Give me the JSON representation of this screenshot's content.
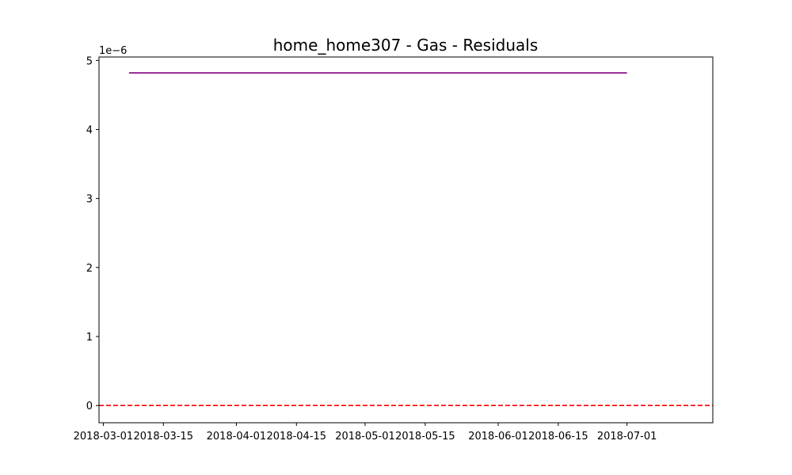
{
  "chart_data": {
    "type": "line",
    "title": "home_home307 - Gas - Residuals",
    "xlabel": "",
    "ylabel": "",
    "y_offset_label": "1e−6",
    "x_ticks": [
      {
        "date": "2018-03-01",
        "label": "2018-03-01"
      },
      {
        "date": "2018-03-15",
        "label": "2018-03-15"
      },
      {
        "date": "2018-04-01",
        "label": "2018-04-01"
      },
      {
        "date": "2018-04-15",
        "label": "2018-04-15"
      },
      {
        "date": "2018-05-01",
        "label": "2018-05-01"
      },
      {
        "date": "2018-05-15",
        "label": "2018-05-15"
      },
      {
        "date": "2018-06-01",
        "label": "2018-06-01"
      },
      {
        "date": "2018-06-15",
        "label": "2018-06-15"
      },
      {
        "date": "2018-07-01",
        "label": "2018-07-01"
      }
    ],
    "y_ticks": [
      {
        "value": 0,
        "label": "0"
      },
      {
        "value": 1,
        "label": "1"
      },
      {
        "value": 2,
        "label": "2"
      },
      {
        "value": 3,
        "label": "3"
      },
      {
        "value": 4,
        "label": "4"
      },
      {
        "value": 5,
        "label": "5"
      }
    ],
    "xlim": [
      "2018-02-28",
      "2018-07-21"
    ],
    "ylim": [
      -0.25,
      5.05
    ],
    "y_scale_note": "values in units of 1e-6",
    "series": [
      {
        "color": "#800080",
        "style": "solid",
        "points": [
          {
            "x": "2018-03-07",
            "y": 4.82
          },
          {
            "x": "2018-07-01",
            "y": 4.82
          }
        ]
      }
    ],
    "reference_lines": [
      {
        "y": 0,
        "color": "#ff0000",
        "style": "dashed"
      }
    ],
    "grid": false,
    "legend": "none"
  }
}
